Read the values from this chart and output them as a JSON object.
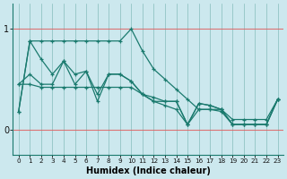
{
  "xlabel": "Humidex (Indice chaleur)",
  "background_color": "#cce8ee",
  "line_color": "#1a7a6e",
  "vgrid_color": "#1a7a6e",
  "hgrid_color": "#e06060",
  "xlim": [
    -0.5,
    23.5
  ],
  "ylim": [
    -0.25,
    1.25
  ],
  "yticks": [
    0,
    1
  ],
  "xticks": [
    0,
    1,
    2,
    3,
    4,
    5,
    6,
    7,
    8,
    9,
    10,
    11,
    12,
    13,
    14,
    15,
    16,
    17,
    18,
    19,
    20,
    21,
    22,
    23
  ],
  "series": [
    [
      0.18,
      0.88,
      0.88,
      0.88,
      0.88,
      0.88,
      0.88,
      0.88,
      0.88,
      0.88,
      1.0,
      0.78,
      0.6,
      0.5,
      0.4,
      0.3,
      0.2,
      0.2,
      0.2,
      0.1,
      0.1,
      0.1,
      0.1,
      0.3
    ],
    [
      0.18,
      0.88,
      0.7,
      0.55,
      0.68,
      0.55,
      0.58,
      0.35,
      0.55,
      0.55,
      0.48,
      0.35,
      0.32,
      0.28,
      0.28,
      0.05,
      0.26,
      0.24,
      0.2,
      0.05,
      0.05,
      0.05,
      0.05,
      0.3
    ],
    [
      0.45,
      0.55,
      0.45,
      0.45,
      0.68,
      0.45,
      0.58,
      0.28,
      0.55,
      0.55,
      0.48,
      0.35,
      0.28,
      0.28,
      0.28,
      0.05,
      0.26,
      0.24,
      0.2,
      0.05,
      0.05,
      0.05,
      0.05,
      0.3
    ],
    [
      0.45,
      0.45,
      0.42,
      0.42,
      0.42,
      0.42,
      0.42,
      0.42,
      0.42,
      0.42,
      0.42,
      0.35,
      0.28,
      0.24,
      0.2,
      0.05,
      0.2,
      0.2,
      0.18,
      0.05,
      0.05,
      0.05,
      0.05,
      0.3
    ]
  ]
}
